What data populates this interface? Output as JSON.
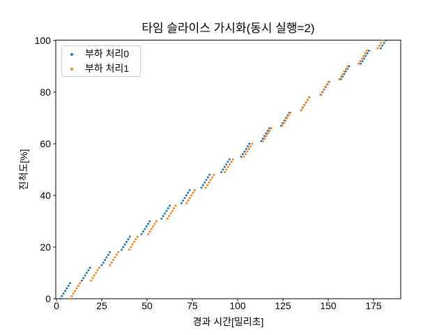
{
  "title": "타임 슬라이스 가시화(동시 실행=2)",
  "legend": {
    "items": [
      {
        "label": "부하 처리0",
        "color": "#1f77b4"
      },
      {
        "label": "부하 처리1",
        "color": "#ff7f0e"
      }
    ]
  },
  "chart_data": {
    "type": "scatter",
    "title": "타임 슬라이스 가시화(동시 실행=2)",
    "xlabel": "경과 시간[밀리초]",
    "ylabel": "진척도[%]",
    "xlim": [
      0,
      190
    ],
    "ylim": [
      0,
      100
    ],
    "xticks": [
      0,
      25,
      50,
      75,
      100,
      125,
      150,
      175
    ],
    "yticks": [
      0,
      20,
      40,
      60,
      80,
      100
    ],
    "grid": false,
    "legend_position": "upper left",
    "marker": "dot",
    "series": [
      {
        "name": "부하 처리0",
        "color": "#1f77b4",
        "points": [
          [
            2.1,
            0
          ],
          [
            3.0,
            1
          ],
          [
            3.9,
            2
          ],
          [
            4.8,
            3
          ],
          [
            5.7,
            4
          ],
          [
            6.6,
            5
          ],
          [
            7.5,
            6
          ],
          [
            14.0,
            7
          ],
          [
            14.9,
            8
          ],
          [
            15.8,
            9
          ],
          [
            16.7,
            10
          ],
          [
            17.6,
            11
          ],
          [
            18.5,
            12
          ],
          [
            25.0,
            13
          ],
          [
            25.9,
            14
          ],
          [
            26.8,
            15
          ],
          [
            27.7,
            16
          ],
          [
            28.6,
            17
          ],
          [
            29.5,
            18
          ],
          [
            36.0,
            19
          ],
          [
            36.9,
            20
          ],
          [
            37.8,
            21
          ],
          [
            38.7,
            22
          ],
          [
            39.6,
            23
          ],
          [
            40.5,
            24
          ],
          [
            47.0,
            25
          ],
          [
            47.9,
            26
          ],
          [
            48.8,
            27
          ],
          [
            49.7,
            28
          ],
          [
            50.6,
            29
          ],
          [
            51.5,
            30
          ],
          [
            58.0,
            31
          ],
          [
            58.9,
            32
          ],
          [
            59.8,
            33
          ],
          [
            60.7,
            34
          ],
          [
            61.6,
            35
          ],
          [
            62.5,
            36
          ],
          [
            69.0,
            37
          ],
          [
            69.9,
            38
          ],
          [
            70.8,
            39
          ],
          [
            71.7,
            40
          ],
          [
            72.6,
            41
          ],
          [
            73.5,
            42
          ],
          [
            80.0,
            43
          ],
          [
            80.9,
            44
          ],
          [
            81.8,
            45
          ],
          [
            82.7,
            46
          ],
          [
            83.6,
            47
          ],
          [
            84.5,
            48
          ],
          [
            91.0,
            49
          ],
          [
            91.9,
            50
          ],
          [
            92.8,
            51
          ],
          [
            93.7,
            52
          ],
          [
            94.6,
            53
          ],
          [
            95.5,
            54
          ],
          [
            102.0,
            55
          ],
          [
            102.9,
            56
          ],
          [
            103.8,
            57
          ],
          [
            104.7,
            58
          ],
          [
            105.6,
            59
          ],
          [
            106.5,
            60
          ],
          [
            113.0,
            61
          ],
          [
            113.9,
            62
          ],
          [
            114.8,
            63
          ],
          [
            115.7,
            64
          ],
          [
            116.6,
            65
          ],
          [
            117.5,
            66
          ],
          [
            124.0,
            67
          ],
          [
            124.9,
            68
          ],
          [
            125.8,
            69
          ],
          [
            126.7,
            70
          ],
          [
            127.6,
            71
          ],
          [
            128.5,
            72
          ],
          [
            135.0,
            73
          ],
          [
            135.9,
            74
          ],
          [
            136.8,
            75
          ],
          [
            137.7,
            76
          ],
          [
            138.6,
            77
          ],
          [
            139.5,
            78
          ],
          [
            146.0,
            79
          ],
          [
            146.9,
            80
          ],
          [
            147.8,
            81
          ],
          [
            148.7,
            82
          ],
          [
            149.6,
            83
          ],
          [
            150.5,
            84
          ],
          [
            157.0,
            85
          ],
          [
            157.9,
            86
          ],
          [
            158.8,
            87
          ],
          [
            159.7,
            88
          ],
          [
            160.6,
            89
          ],
          [
            161.5,
            90
          ],
          [
            168.0,
            91
          ],
          [
            168.9,
            92
          ],
          [
            169.8,
            93
          ],
          [
            170.7,
            94
          ],
          [
            171.6,
            95
          ],
          [
            172.5,
            96
          ],
          [
            179.0,
            97
          ],
          [
            179.9,
            98
          ],
          [
            180.8,
            99
          ],
          [
            181.7,
            100
          ]
        ]
      },
      {
        "name": "부하 처리1",
        "color": "#ff7f0e",
        "points": [
          [
            7.6,
            0
          ],
          [
            8.5,
            1
          ],
          [
            9.4,
            2
          ],
          [
            10.3,
            3
          ],
          [
            11.2,
            4
          ],
          [
            12.1,
            5
          ],
          [
            13.0,
            6
          ],
          [
            19.1,
            7
          ],
          [
            20.0,
            8
          ],
          [
            20.9,
            9
          ],
          [
            21.8,
            10
          ],
          [
            22.7,
            11
          ],
          [
            23.6,
            12
          ],
          [
            29.6,
            13
          ],
          [
            30.5,
            14
          ],
          [
            31.4,
            15
          ],
          [
            32.3,
            16
          ],
          [
            33.2,
            17
          ],
          [
            34.1,
            18
          ],
          [
            40.2,
            19
          ],
          [
            41.1,
            20
          ],
          [
            42.0,
            21
          ],
          [
            42.9,
            22
          ],
          [
            43.8,
            23
          ],
          [
            44.7,
            24
          ],
          [
            50.7,
            25
          ],
          [
            51.6,
            26
          ],
          [
            52.5,
            27
          ],
          [
            53.4,
            28
          ],
          [
            54.3,
            29
          ],
          [
            55.2,
            30
          ],
          [
            61.3,
            31
          ],
          [
            62.2,
            32
          ],
          [
            63.1,
            33
          ],
          [
            64.0,
            34
          ],
          [
            64.9,
            35
          ],
          [
            65.8,
            36
          ],
          [
            71.8,
            37
          ],
          [
            72.7,
            38
          ],
          [
            73.6,
            39
          ],
          [
            74.5,
            40
          ],
          [
            75.4,
            41
          ],
          [
            76.3,
            42
          ],
          [
            82.4,
            43
          ],
          [
            83.3,
            44
          ],
          [
            84.2,
            45
          ],
          [
            85.1,
            46
          ],
          [
            86.0,
            47
          ],
          [
            86.9,
            48
          ],
          [
            92.9,
            49
          ],
          [
            93.8,
            50
          ],
          [
            94.7,
            51
          ],
          [
            95.6,
            52
          ],
          [
            96.5,
            53
          ],
          [
            97.4,
            54
          ],
          [
            103.5,
            55
          ],
          [
            104.4,
            56
          ],
          [
            105.3,
            57
          ],
          [
            106.2,
            58
          ],
          [
            107.1,
            59
          ],
          [
            108.0,
            60
          ],
          [
            114.0,
            61
          ],
          [
            114.9,
            62
          ],
          [
            115.8,
            63
          ],
          [
            116.7,
            64
          ],
          [
            117.6,
            65
          ],
          [
            118.5,
            66
          ],
          [
            124.6,
            67
          ],
          [
            125.5,
            68
          ],
          [
            126.4,
            69
          ],
          [
            127.3,
            70
          ],
          [
            128.2,
            71
          ],
          [
            129.1,
            72
          ],
          [
            135.1,
            73
          ],
          [
            136.0,
            74
          ],
          [
            136.9,
            75
          ],
          [
            137.8,
            76
          ],
          [
            138.7,
            77
          ],
          [
            139.6,
            78
          ],
          [
            145.7,
            79
          ],
          [
            146.6,
            80
          ],
          [
            147.5,
            81
          ],
          [
            148.4,
            82
          ],
          [
            149.3,
            83
          ],
          [
            150.2,
            84
          ],
          [
            156.2,
            85
          ],
          [
            157.1,
            86
          ],
          [
            158.0,
            87
          ],
          [
            158.9,
            88
          ],
          [
            159.8,
            89
          ],
          [
            160.7,
            90
          ],
          [
            166.8,
            91
          ],
          [
            167.7,
            92
          ],
          [
            168.6,
            93
          ],
          [
            169.5,
            94
          ],
          [
            170.4,
            95
          ],
          [
            171.3,
            96
          ],
          [
            177.3,
            97
          ],
          [
            178.2,
            98
          ],
          [
            179.1,
            99
          ],
          [
            180.0,
            100
          ]
        ]
      }
    ]
  }
}
